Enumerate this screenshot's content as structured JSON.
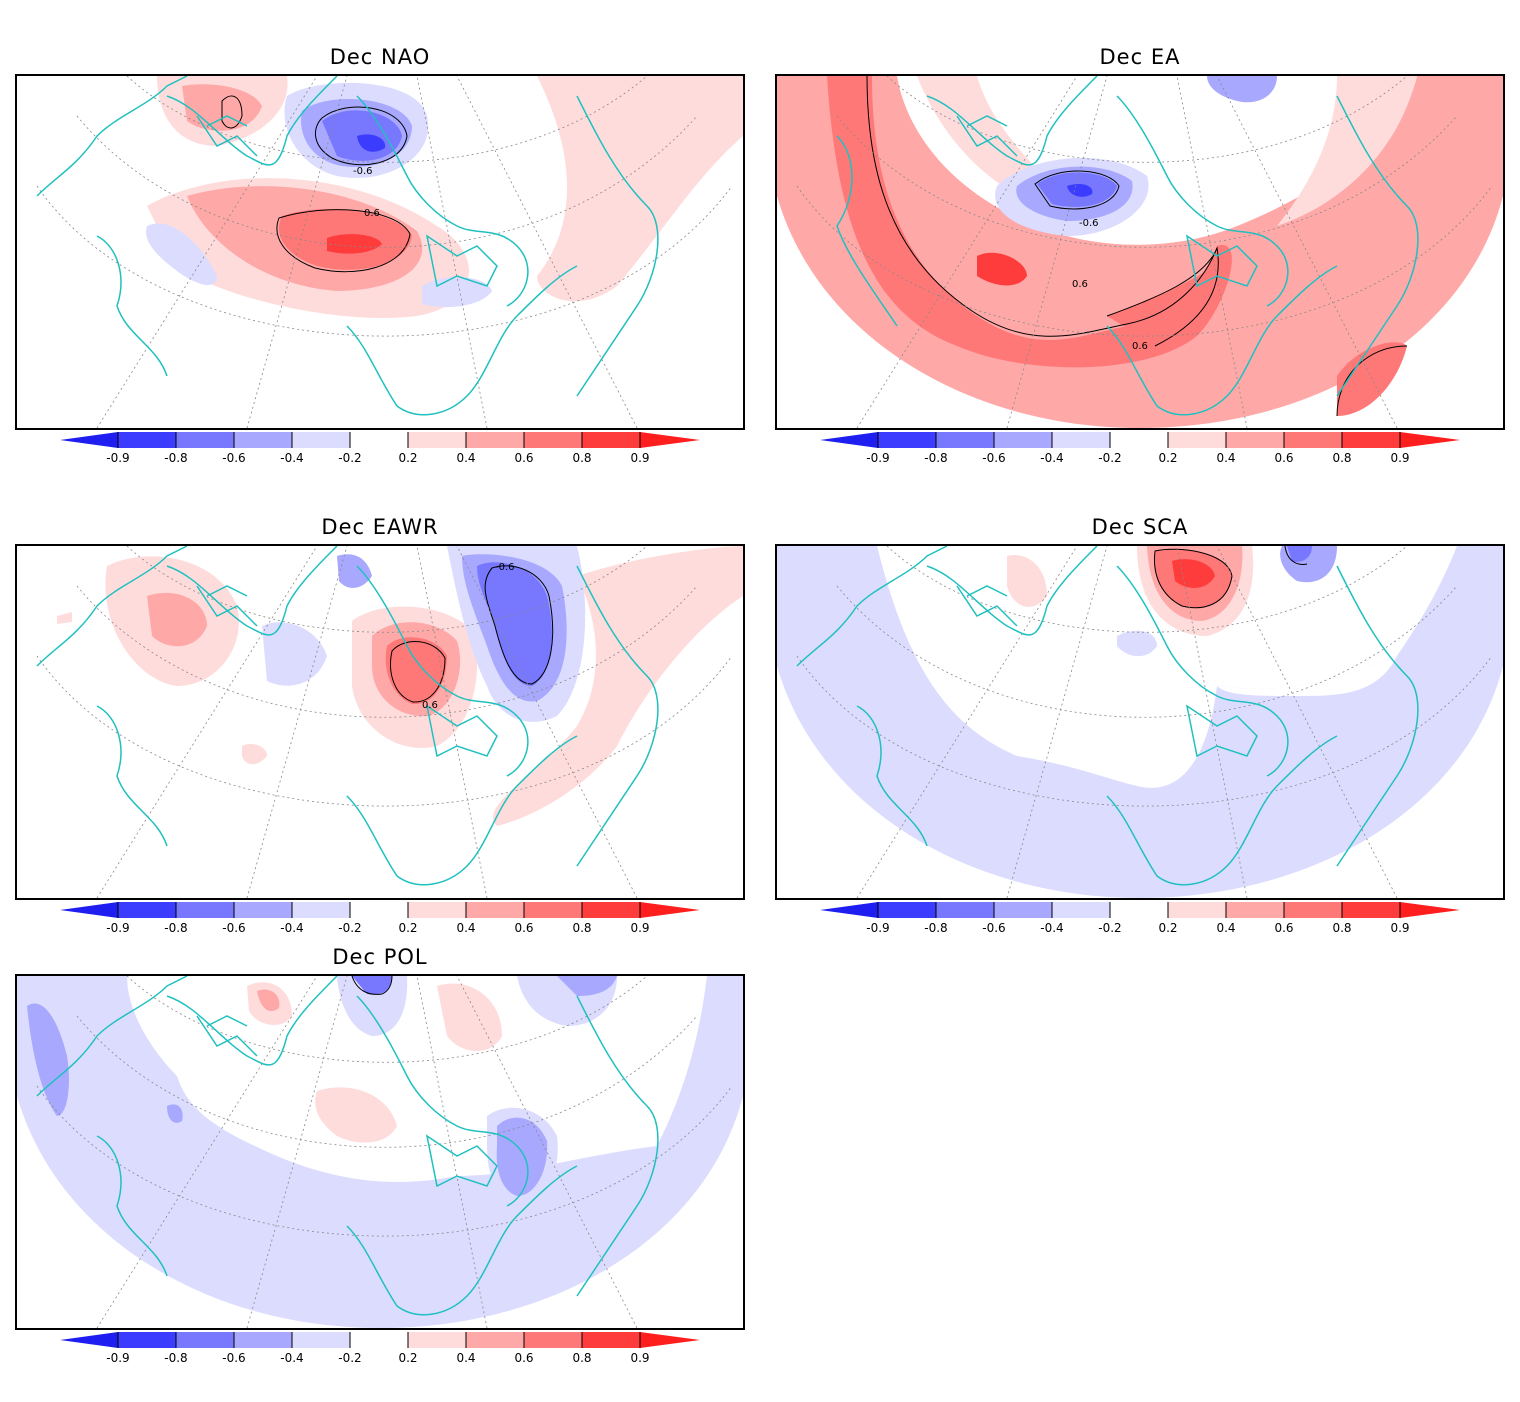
{
  "colorbar": {
    "tick_labels": [
      "-0.9",
      "-0.8",
      "-0.6",
      "-0.4",
      "-0.2",
      "0.2",
      "0.4",
      "0.6",
      "0.8",
      "0.9"
    ],
    "negative_colors": [
      "#1e1ef0",
      "#3c3cff",
      "#7878ff",
      "#a8a8ff",
      "#dcdcff"
    ],
    "positive_colors": [
      "#ffdcdc",
      "#ffa8a8",
      "#ff7878",
      "#ff3c3c",
      "#ff1e1e"
    ]
  },
  "panels": [
    {
      "id": "nao",
      "title": "Dec  NAO",
      "contour_labels": [
        "-0.6",
        "0.6"
      ]
    },
    {
      "id": "ea",
      "title": "Dec  EA",
      "contour_labels": [
        "-0.6",
        "0.6",
        "0.6"
      ]
    },
    {
      "id": "eawr",
      "title": "Dec  EAWR",
      "contour_labels": [
        "-0.6",
        "0.6"
      ]
    },
    {
      "id": "sca",
      "title": "Dec  SCA",
      "contour_labels": []
    },
    {
      "id": "pol",
      "title": "Dec  POL",
      "contour_labels": []
    }
  ],
  "style": {
    "coast_color": "#20c0c0",
    "contour_color": "#000000"
  }
}
